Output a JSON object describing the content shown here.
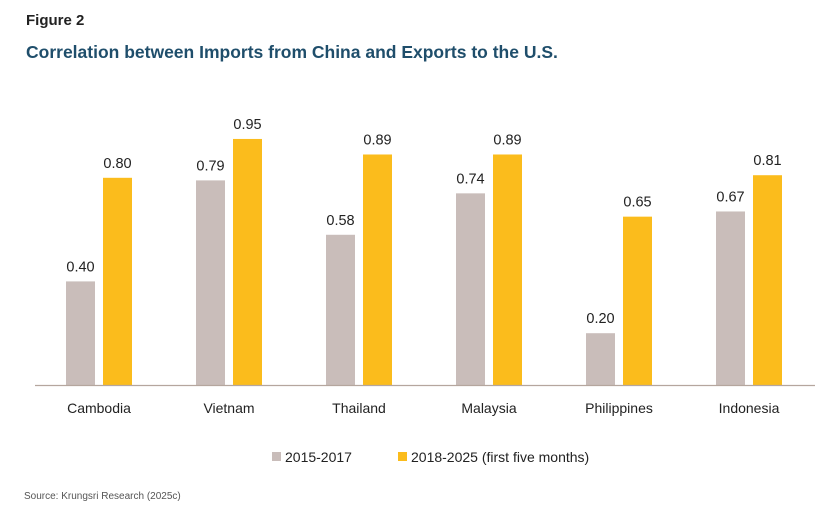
{
  "figure_label": "Figure 2",
  "source": "Source: Krungsri Research (2025c)",
  "chart_data": {
    "type": "bar",
    "title": "Correlation between Imports from China and Exports to the U.S.",
    "xlabel": "",
    "ylabel": "",
    "ylim": [
      0,
      1
    ],
    "grid": false,
    "legend_position": "bottom",
    "categories": [
      "Cambodia",
      "Vietnam",
      "Thailand",
      "Malaysia",
      "Philippines",
      "Indonesia"
    ],
    "series": [
      {
        "name": "2015-2017",
        "color": "#c9bdba",
        "values": [
          0.4,
          0.79,
          0.58,
          0.74,
          0.2,
          0.67
        ],
        "labels": [
          "0.40",
          "0.79",
          "0.58",
          "0.74",
          "0.20",
          "0.67"
        ]
      },
      {
        "name": "2018-2025 (first five months)",
        "color": "#fbbc1c",
        "values": [
          0.8,
          0.95,
          0.89,
          0.89,
          0.65,
          0.81
        ],
        "labels": [
          "0.80",
          "0.95",
          "0.89",
          "0.89",
          "0.65",
          "0.81"
        ]
      }
    ]
  }
}
